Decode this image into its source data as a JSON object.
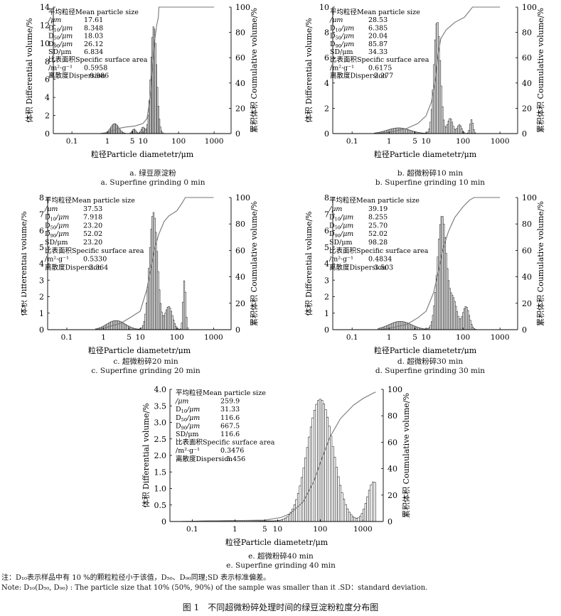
{
  "stat_labels": [
    "平均粒径Mean particle size",
    "/μm",
    "D10/μm",
    "D50/μm",
    "D90/μm",
    "SD/μm",
    "比表面积Specific surface area",
    "/m²·g⁻¹",
    "离散度Dispersion"
  ],
  "chart_data": [
    {
      "type": "bar",
      "id": "a",
      "xlabel": "粒径Particle diametetr/μm",
      "ylabel_left": "体积 Differential volume/%",
      "ylabel_right": "累积体积 Coumulative volume/%",
      "x_scale": "log",
      "xlim": [
        0.03,
        3000
      ],
      "x_ticks": [
        0.1,
        1,
        5,
        10,
        100,
        1000
      ],
      "x_tick_labels": [
        "0.1",
        "1",
        "5",
        "10",
        "100",
        "1000"
      ],
      "ylim": [
        0,
        14
      ],
      "y_ticks": [
        0,
        2,
        4,
        6,
        8,
        10,
        12,
        14
      ],
      "y2lim": [
        0,
        100
      ],
      "y2_ticks": [
        0,
        20,
        40,
        60,
        80,
        100
      ],
      "stats": {
        "mean": "17.61",
        "d10": "8.348",
        "d50": "18.03",
        "d90": "26.12",
        "sd": "6.834",
        "ssa": "0.5958",
        "dispersion": "0.986"
      },
      "bins": {
        "x_min": 0.6,
        "x_max": 110,
        "count": 80
      },
      "components": [
        {
          "center": 1.6,
          "height": 1.1,
          "sigma": 0.11
        },
        {
          "center": 5.6,
          "height": 0.5,
          "sigma": 0.05
        },
        {
          "center": 10.0,
          "height": 0.7,
          "sigma": 0.05
        },
        {
          "center": 20.0,
          "height": 11.9,
          "sigma": 0.08
        }
      ],
      "cumulative": [
        [
          0.6,
          0
        ],
        [
          1.1,
          1
        ],
        [
          2.0,
          4
        ],
        [
          3.0,
          5
        ],
        [
          6.0,
          6
        ],
        [
          10.0,
          8
        ],
        [
          13.0,
          12
        ],
        [
          16.0,
          30
        ],
        [
          18.0,
          50
        ],
        [
          21.0,
          72
        ],
        [
          24.0,
          85
        ],
        [
          27.0,
          92
        ],
        [
          28.0,
          100
        ],
        [
          1000,
          100
        ]
      ],
      "caption_cn": "a. 绿豆原淀粉",
      "caption_en": "a. Superfine grinding 0 min"
    },
    {
      "type": "bar",
      "id": "b",
      "xlabel": "粒径Particle diametetr/μm",
      "ylabel_left": "体积 Differential volume/%",
      "ylabel_right": "累积体积 Coumulative volume/%",
      "x_scale": "log",
      "xlim": [
        0.03,
        3000
      ],
      "x_ticks": [
        0.1,
        1,
        5,
        10,
        100,
        1000
      ],
      "x_tick_labels": [
        "0.1",
        "1",
        "5",
        "10",
        "100",
        "1000"
      ],
      "ylim": [
        0,
        10
      ],
      "y_ticks": [
        0,
        2,
        4,
        6,
        8,
        10
      ],
      "y2lim": [
        0,
        100
      ],
      "y2_ticks": [
        0,
        20,
        40,
        60,
        80,
        100
      ],
      "stats": {
        "mean": "28.53",
        "d10": "6.385",
        "d50": "20.04",
        "d90": "85.87",
        "sd": "34.33",
        "ssa": "0.6175",
        "dispersion": "2.277"
      },
      "bins": {
        "x_min": 0.4,
        "x_max": 220,
        "count": 84
      },
      "components": [
        {
          "center": 1.8,
          "height": 0.45,
          "sigma": 0.3
        },
        {
          "center": 20.0,
          "height": 8.9,
          "sigma": 0.085
        },
        {
          "center": 45.0,
          "height": 1.2,
          "sigma": 0.07
        },
        {
          "center": 80.0,
          "height": 0.7,
          "sigma": 0.06
        },
        {
          "center": 170.0,
          "height": 1.1,
          "sigma": 0.04
        }
      ],
      "cumulative": [
        [
          0.4,
          0
        ],
        [
          1.0,
          1
        ],
        [
          3.0,
          4
        ],
        [
          6.0,
          8
        ],
        [
          10.0,
          14
        ],
        [
          14.0,
          25
        ],
        [
          18.0,
          44
        ],
        [
          21.0,
          62
        ],
        [
          25.0,
          75
        ],
        [
          35.0,
          82
        ],
        [
          60.0,
          88
        ],
        [
          110.0,
          92
        ],
        [
          180.0,
          100
        ],
        [
          1000,
          100
        ]
      ],
      "caption_cn": "b. 超微粉碎10 min",
      "caption_en": "b. Superfine grinding 10 min"
    },
    {
      "type": "bar",
      "id": "c",
      "xlabel": "粒径Particle diametetr/μm",
      "ylabel_left": "体积 Differential volume/%",
      "ylabel_right": "累积体积 Coumulative volume/%",
      "x_scale": "log",
      "xlim": [
        0.03,
        3000
      ],
      "x_ticks": [
        0.1,
        1,
        5,
        10,
        100,
        1000
      ],
      "x_tick_labels": [
        "0.1",
        "1",
        "5",
        "10",
        "100",
        "1000"
      ],
      "ylim": [
        0,
        8
      ],
      "y_ticks": [
        0,
        1,
        2,
        3,
        4,
        5,
        6,
        7,
        8
      ],
      "y2lim": [
        0,
        100
      ],
      "y2_ticks": [
        0,
        20,
        40,
        60,
        80,
        100
      ],
      "stats": {
        "mean": "37.53",
        "d10": "7.918",
        "d50": "23.20",
        "d90": "52.02",
        "sd": "23.20",
        "ssa": "0.5330",
        "dispersion": "3.364"
      },
      "bins": {
        "x_min": 0.6,
        "x_max": 220,
        "count": 80
      },
      "components": [
        {
          "center": 2.2,
          "height": 0.55,
          "sigma": 0.25
        },
        {
          "center": 23.0,
          "height": 7.1,
          "sigma": 0.11
        },
        {
          "center": 60.0,
          "height": 1.4,
          "sigma": 0.1
        },
        {
          "center": 160.0,
          "height": 3.0,
          "sigma": 0.035
        }
      ],
      "cumulative": [
        [
          0.6,
          0
        ],
        [
          1.0,
          1
        ],
        [
          3.0,
          5
        ],
        [
          6.0,
          10
        ],
        [
          10.0,
          14
        ],
        [
          15.0,
          30
        ],
        [
          20.0,
          48
        ],
        [
          25.0,
          62
        ],
        [
          32.0,
          72
        ],
        [
          45.0,
          82
        ],
        [
          60.0,
          86
        ],
        [
          100.0,
          90
        ],
        [
          140.0,
          96
        ],
        [
          170.0,
          100
        ],
        [
          1000,
          100
        ]
      ],
      "caption_cn": "c. 超微粉碎20 min",
      "caption_en": "c. Superfine grinding 20 min"
    },
    {
      "type": "bar",
      "id": "d",
      "xlabel": "粒径Particle diametetr/μm",
      "ylabel_left": "体积 Differential volume/%",
      "ylabel_right": "累积体积 Coumulative volume/%",
      "x_scale": "log",
      "xlim": [
        0.03,
        3000
      ],
      "x_ticks": [
        0.1,
        1,
        5,
        10,
        100,
        1000
      ],
      "x_tick_labels": [
        "0.1",
        "1",
        "5",
        "10",
        "100",
        "1000"
      ],
      "ylim": [
        0,
        8
      ],
      "y_ticks": [
        0,
        1,
        2,
        3,
        4,
        5,
        6,
        7,
        8
      ],
      "y2lim": [
        0,
        100
      ],
      "y2_ticks": [
        0,
        20,
        40,
        60,
        80,
        100
      ],
      "stats": {
        "mean": "39.19",
        "d10": "8.255",
        "d50": "25.70",
        "d90": "52.02",
        "sd": "98.28",
        "ssa": "0.4834",
        "dispersion": "3.503"
      },
      "bins": {
        "x_min": 0.5,
        "x_max": 240,
        "count": 82
      },
      "components": [
        {
          "center": 2.0,
          "height": 0.5,
          "sigma": 0.3
        },
        {
          "center": 27.0,
          "height": 6.9,
          "sigma": 0.12
        },
        {
          "center": 55.0,
          "height": 1.7,
          "sigma": 0.1
        },
        {
          "center": 120.0,
          "height": 1.4,
          "sigma": 0.09
        }
      ],
      "cumulative": [
        [
          0.5,
          0
        ],
        [
          1.0,
          1
        ],
        [
          3.0,
          4
        ],
        [
          6.0,
          9
        ],
        [
          10.0,
          14
        ],
        [
          16.0,
          28
        ],
        [
          22.0,
          45
        ],
        [
          28.0,
          60
        ],
        [
          40.0,
          74
        ],
        [
          60.0,
          85
        ],
        [
          100.0,
          93
        ],
        [
          150.0,
          98
        ],
        [
          200.0,
          100
        ],
        [
          1000,
          100
        ]
      ],
      "caption_cn": "d. 超微粉碎30 min",
      "caption_en": "d. Superfine grinding 30 min"
    },
    {
      "type": "bar",
      "id": "e",
      "xlabel": "粒径Particle diametetr/μm",
      "ylabel_left": "体积 Differential volume/%",
      "ylabel_right": "累积体积 Coumulative volume/%",
      "x_scale": "log",
      "xlim": [
        0.03,
        3000
      ],
      "x_ticks": [
        0.1,
        1,
        5,
        10,
        100,
        1000
      ],
      "x_tick_labels": [
        "0.1",
        "1",
        "5",
        "10",
        "100",
        "1000"
      ],
      "ylim": [
        0,
        4
      ],
      "y_ticks": [
        0,
        0.5,
        1.0,
        1.5,
        2.0,
        2.5,
        3.0,
        3.5,
        4.0
      ],
      "y_tick_labels": [
        "0",
        "0.5",
        "1.0",
        "1.5",
        "2.0",
        "2.5",
        "3.0",
        "3.5",
        "4.0"
      ],
      "y2lim": [
        0,
        100
      ],
      "y2_ticks": [
        0,
        20,
        40,
        60,
        80,
        100
      ],
      "stats": {
        "mean": "259.9",
        "d10": "31.33",
        "d50": "116.6",
        "d90": "667.5",
        "sd": "116.6",
        "ssa": "0.3476",
        "dispersion": "5.456"
      },
      "bins": {
        "x_min": 0.04,
        "x_max": 2000,
        "count": 110
      },
      "components": [
        {
          "center": 100.0,
          "height": 3.7,
          "sigma": 0.3
        },
        {
          "center": 1800.0,
          "height": 1.2,
          "sigma": 0.15
        },
        {
          "center": 1.0,
          "height": 0.03,
          "sigma": 0.8
        }
      ],
      "cumulative": [
        [
          0.04,
          0
        ],
        [
          5.0,
          1
        ],
        [
          12.0,
          3
        ],
        [
          20.0,
          6
        ],
        [
          40.0,
          15
        ],
        [
          70.0,
          30
        ],
        [
          110.0,
          48
        ],
        [
          170.0,
          64
        ],
        [
          300.0,
          78
        ],
        [
          600.0,
          88
        ],
        [
          1000.0,
          93
        ],
        [
          1700.0,
          97
        ],
        [
          2000.0,
          98
        ]
      ],
      "caption_cn": "e. 超微粉碎40 min",
      "caption_en": "e. Superfine grinding 40 min"
    }
  ],
  "notes": {
    "cn": "注：D₁₀表示样品中有 10 %的颗粒粒径小于该值，D₅₀、D₉₀同理;SD 表示标准偏差。",
    "en": "Note: D₁₀(D₅₀, D₉₀) : The particle size that 10% (50%, 90%) of the sample was smaller than it .SD：standard deviation."
  },
  "figure_title": "图 1　不同超微粉碎处理时间的绿豆淀粉粒度分布图"
}
